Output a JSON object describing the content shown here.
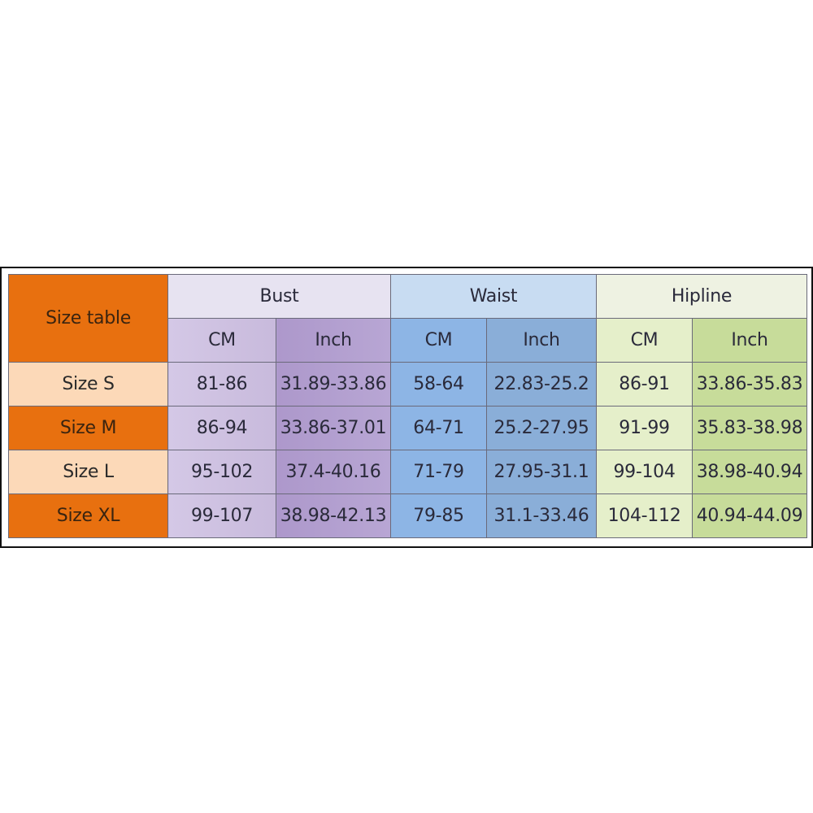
{
  "table": {
    "corner_label": "Size table",
    "groups": [
      "Bust",
      "Waist",
      "Hipline"
    ],
    "units": [
      "CM",
      "Inch",
      "CM",
      "Inch",
      "CM",
      "Inch"
    ],
    "rows": [
      {
        "size": "Size S",
        "values": [
          "81-86",
          "31.89-33.86",
          "58-64",
          "22.83-25.2",
          "86-91",
          "33.86-35.83"
        ]
      },
      {
        "size": "Size M",
        "values": [
          "86-94",
          "33.86-37.01",
          "64-71",
          "25.2-27.95",
          "91-99",
          "35.83-38.98"
        ]
      },
      {
        "size": "Size L",
        "values": [
          "95-102",
          "37.4-40.16",
          "71-79",
          "27.95-31.1",
          "99-104",
          "38.98-40.94"
        ]
      },
      {
        "size": "Size XL",
        "values": [
          "99-107",
          "38.98-42.13",
          "79-85",
          "31.1-33.46",
          "104-112",
          "40.94-44.09"
        ]
      }
    ]
  },
  "colors": {
    "size_accent": "#e8700f",
    "size_light": "#fcd9b8",
    "bust": "#b09ccc",
    "waist": "#8cb4e4",
    "hipline": "#c6dc98"
  }
}
